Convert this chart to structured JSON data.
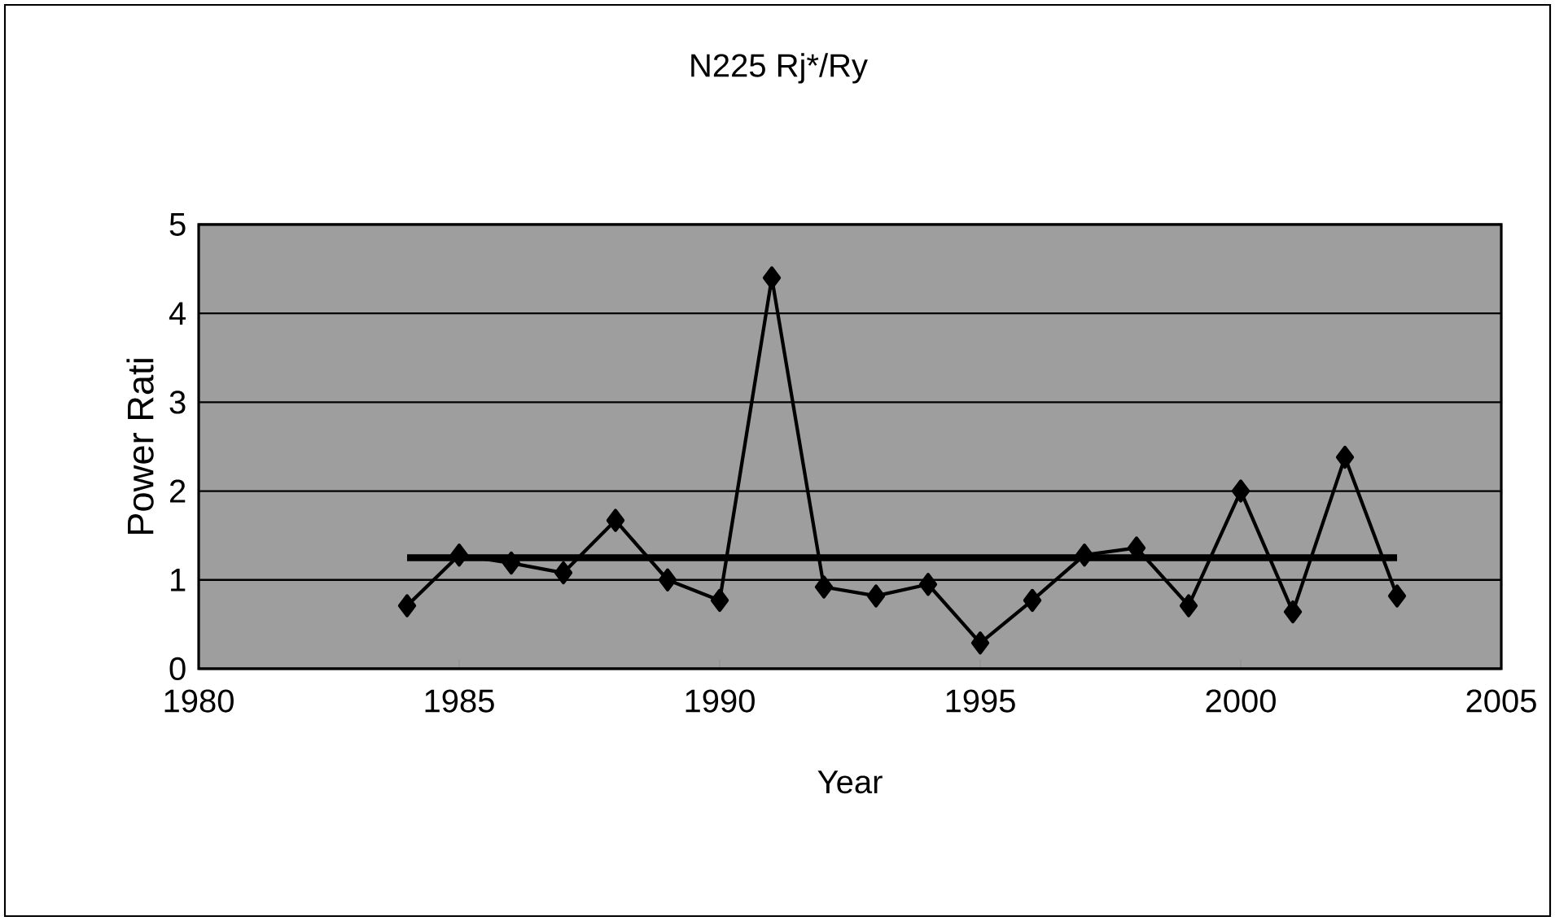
{
  "chart_data": {
    "type": "line",
    "title": "N225 Rj*/Ry",
    "xlabel": "Year",
    "ylabel": "Power Rati",
    "x": [
      1984,
      1985,
      1986,
      1987,
      1988,
      1989,
      1990,
      1991,
      1992,
      1993,
      1994,
      1995,
      1996,
      1997,
      1998,
      1999,
      2000,
      2001,
      2002,
      2003
    ],
    "series": [
      {
        "color": "#000000",
        "marker": "diamond",
        "values": [
          0.71,
          1.28,
          1.19,
          1.08,
          1.67,
          1.0,
          0.77,
          4.4,
          0.92,
          0.82,
          0.95,
          0.29,
          0.77,
          1.28,
          1.36,
          0.71,
          2.0,
          0.64,
          2.38,
          0.82
        ]
      },
      {
        "color": "#000000",
        "marker": "none",
        "x": [
          1984,
          2003
        ],
        "values": [
          1.25,
          1.25
        ]
      }
    ],
    "xlim": [
      1980,
      2005
    ],
    "xticks": [
      1980,
      1985,
      1990,
      1995,
      2000,
      2005
    ],
    "ylim": [
      0,
      5
    ],
    "yticks": [
      0,
      1,
      2,
      3,
      4,
      5
    ],
    "grid": "y"
  }
}
